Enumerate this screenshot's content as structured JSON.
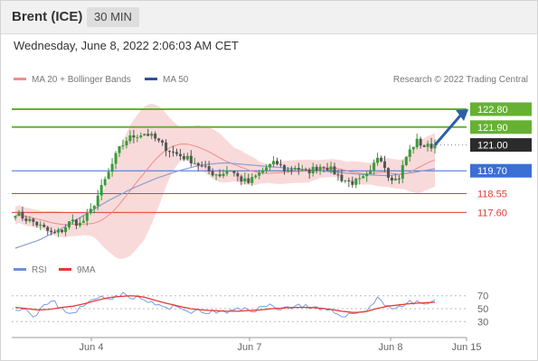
{
  "header": {
    "title": "Brent (ICE)",
    "timeframe": "30 MIN"
  },
  "date_line": "Wednesday, June 8, 2022 2:06:03 AM CET",
  "legend": {
    "ma_bb": "MA 20 + Bollinger Bands",
    "ma50": "MA 50",
    "copyright": "Research © 2022 Trading Central"
  },
  "rsi_legend": {
    "rsi": "RSI",
    "ma9": "9MA"
  },
  "colors": {
    "green": "#66b132",
    "blue": "#3b6fd6",
    "red": "#e53935",
    "band": "#f8d4d4",
    "candle_up": "#3a9a3a",
    "candle_down": "#555555",
    "arrow": "#2c5ea8"
  },
  "chart_data": [
    {
      "type": "candlestick",
      "x_ticks": [
        "Jun 4",
        "Jun 7",
        "Jun 8",
        "Jun 15"
      ],
      "ylim": [
        115.3,
        123.8
      ],
      "levels": [
        {
          "value": 122.8,
          "label": "122.80",
          "kind": "resistance"
        },
        {
          "value": 121.9,
          "label": "121.90",
          "kind": "resistance"
        },
        {
          "value": 121.0,
          "label": "121.00",
          "kind": "last"
        },
        {
          "value": 119.7,
          "label": "119.70",
          "kind": "pivot"
        },
        {
          "value": 118.55,
          "label": "118.55",
          "kind": "support"
        },
        {
          "value": 117.6,
          "label": "117.60",
          "kind": "support"
        }
      ],
      "price_anchors": [
        117.6,
        117.3,
        117.1,
        116.8,
        116.5,
        116.7,
        117.2,
        117.0,
        117.6,
        118.6,
        119.6,
        120.7,
        121.3,
        121.5,
        121.6,
        121.3,
        120.9,
        120.6,
        120.4,
        120.2,
        119.9,
        119.6,
        119.5,
        119.8,
        119.3,
        119.1,
        119.5,
        119.9,
        120.1,
        119.7,
        119.9,
        119.6,
        119.8,
        120.0,
        119.7,
        119.3,
        119.1,
        119.2,
        119.5,
        120.6,
        119.5,
        119.2,
        120.5,
        121.2,
        120.9,
        121.0
      ],
      "ma50_anchors": [
        115.8,
        116.2,
        116.8,
        117.5,
        118.2,
        118.8,
        119.3,
        119.7,
        120.0,
        120.1,
        120.0,
        119.9,
        119.8,
        119.7,
        119.6,
        119.5,
        119.45,
        119.6,
        119.8
      ],
      "arrow_target": 122.8
    },
    {
      "type": "line",
      "name": "RSI",
      "y_ticks": [
        70,
        50,
        30
      ],
      "ylim": [
        15,
        85
      ],
      "rsi_anchors": [
        52,
        50,
        40,
        55,
        60,
        48,
        44,
        52,
        62,
        70,
        68,
        72,
        70,
        66,
        60,
        55,
        50,
        52,
        48,
        45,
        44,
        46,
        43,
        47,
        50,
        48,
        52,
        55,
        50,
        53,
        56,
        50,
        48,
        45,
        42,
        40,
        44,
        50,
        66,
        55,
        50,
        58,
        60,
        58,
        60
      ],
      "ma9_anchors": [
        52,
        50,
        48,
        49,
        52,
        54,
        58,
        63,
        67,
        69,
        70,
        68,
        63,
        58,
        54,
        50,
        48,
        47,
        46,
        46,
        47,
        48,
        50,
        51,
        52,
        52,
        51,
        49,
        46,
        44,
        45,
        50,
        54,
        56,
        58,
        59,
        60
      ]
    }
  ]
}
